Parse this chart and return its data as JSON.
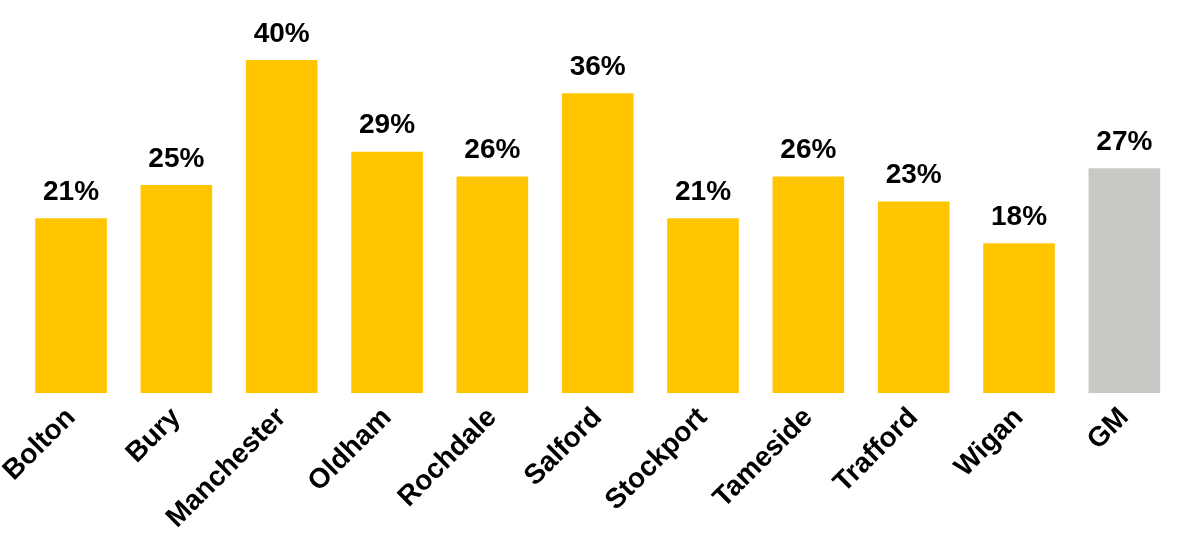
{
  "chart_data": {
    "type": "bar",
    "categories": [
      "Bolton",
      "Bury",
      "Manchester",
      "Oldham",
      "Rochdale",
      "Salford",
      "Stockport",
      "Tameside",
      "Trafford",
      "Wigan",
      "GM"
    ],
    "values": [
      21,
      25,
      40,
      29,
      26,
      36,
      21,
      26,
      23,
      18,
      27
    ],
    "value_labels": [
      "21%",
      "25%",
      "40%",
      "29%",
      "26%",
      "36%",
      "21%",
      "26%",
      "23%",
      "18%",
      "27%"
    ],
    "colors": [
      "#ffc600",
      "#ffc600",
      "#ffc600",
      "#ffc600",
      "#ffc600",
      "#ffc600",
      "#ffc600",
      "#ffc600",
      "#ffc600",
      "#ffc600",
      "#c8c8c4"
    ],
    "grid": false,
    "legend": false
  }
}
